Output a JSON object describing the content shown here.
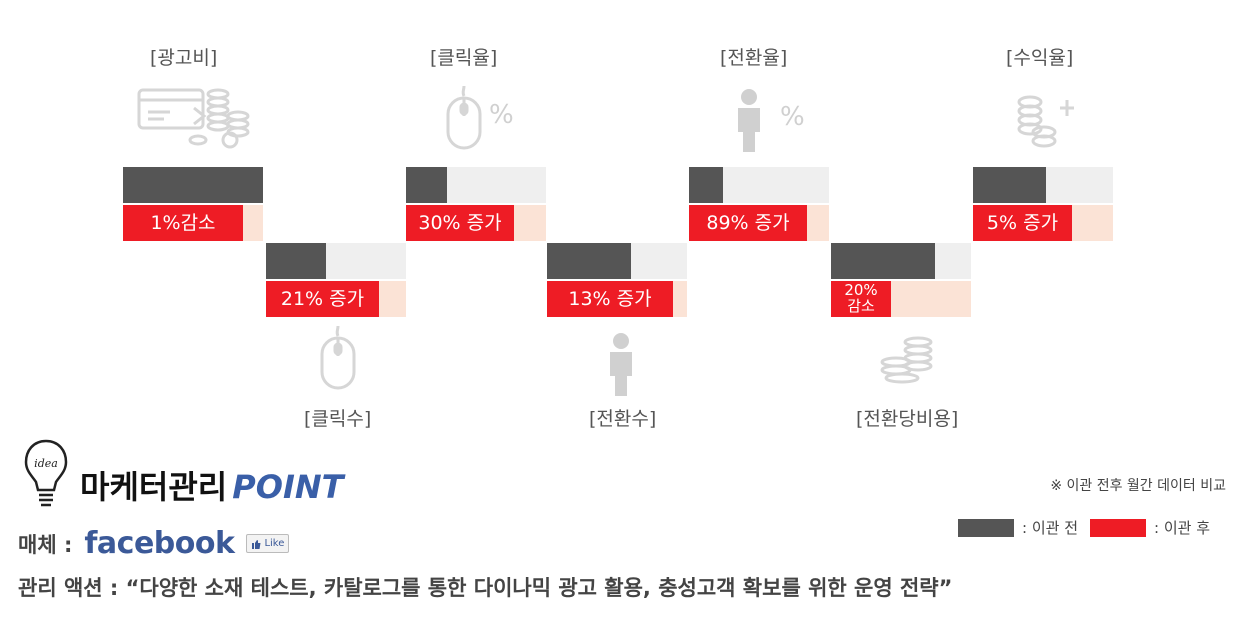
{
  "chart_data": {
    "type": "bar",
    "categories": [
      "[광고비]",
      "[클릭수]",
      "[클릭율]",
      "[전환수]",
      "[전환율]",
      "[전환당비용]",
      "[수익율]"
    ],
    "series": [
      {
        "name": "이관 전",
        "values": [
          100,
          43,
          29,
          60,
          24,
          74,
          52
        ]
      },
      {
        "name": "이관 후",
        "values": [
          86,
          81,
          77,
          90,
          84,
          43,
          71
        ]
      }
    ],
    "change_labels": [
      "1%감소",
      "21% 증가",
      "30% 증가",
      "13% 증가",
      "89% 증가",
      "20%\n감소",
      "5% 증가"
    ],
    "unit_symbols": {
      "click_rate": "%",
      "conversion_rate": "%"
    },
    "ylim": [
      0,
      100
    ],
    "colors": {
      "before": "#555555",
      "after": "#ee1c25",
      "before_bg": "#efefef",
      "after_bg": "#fbe3d6"
    }
  },
  "brand": {
    "title": "마케터관리",
    "point": "POINT"
  },
  "media": {
    "label": "매체 :",
    "logo_text": "facebook",
    "like_label": "Like"
  },
  "action": {
    "text": "관리 액션 : “다양한 소재 테스트, 카탈로그를 통한 다이나믹 광고 활용, 충성고객 확보를 위한 운영 전략”"
  },
  "note": "※ 이관 전후 월간 데이터 비교",
  "legend": {
    "before": ": 이관 전",
    "after": ": 이관 후"
  }
}
